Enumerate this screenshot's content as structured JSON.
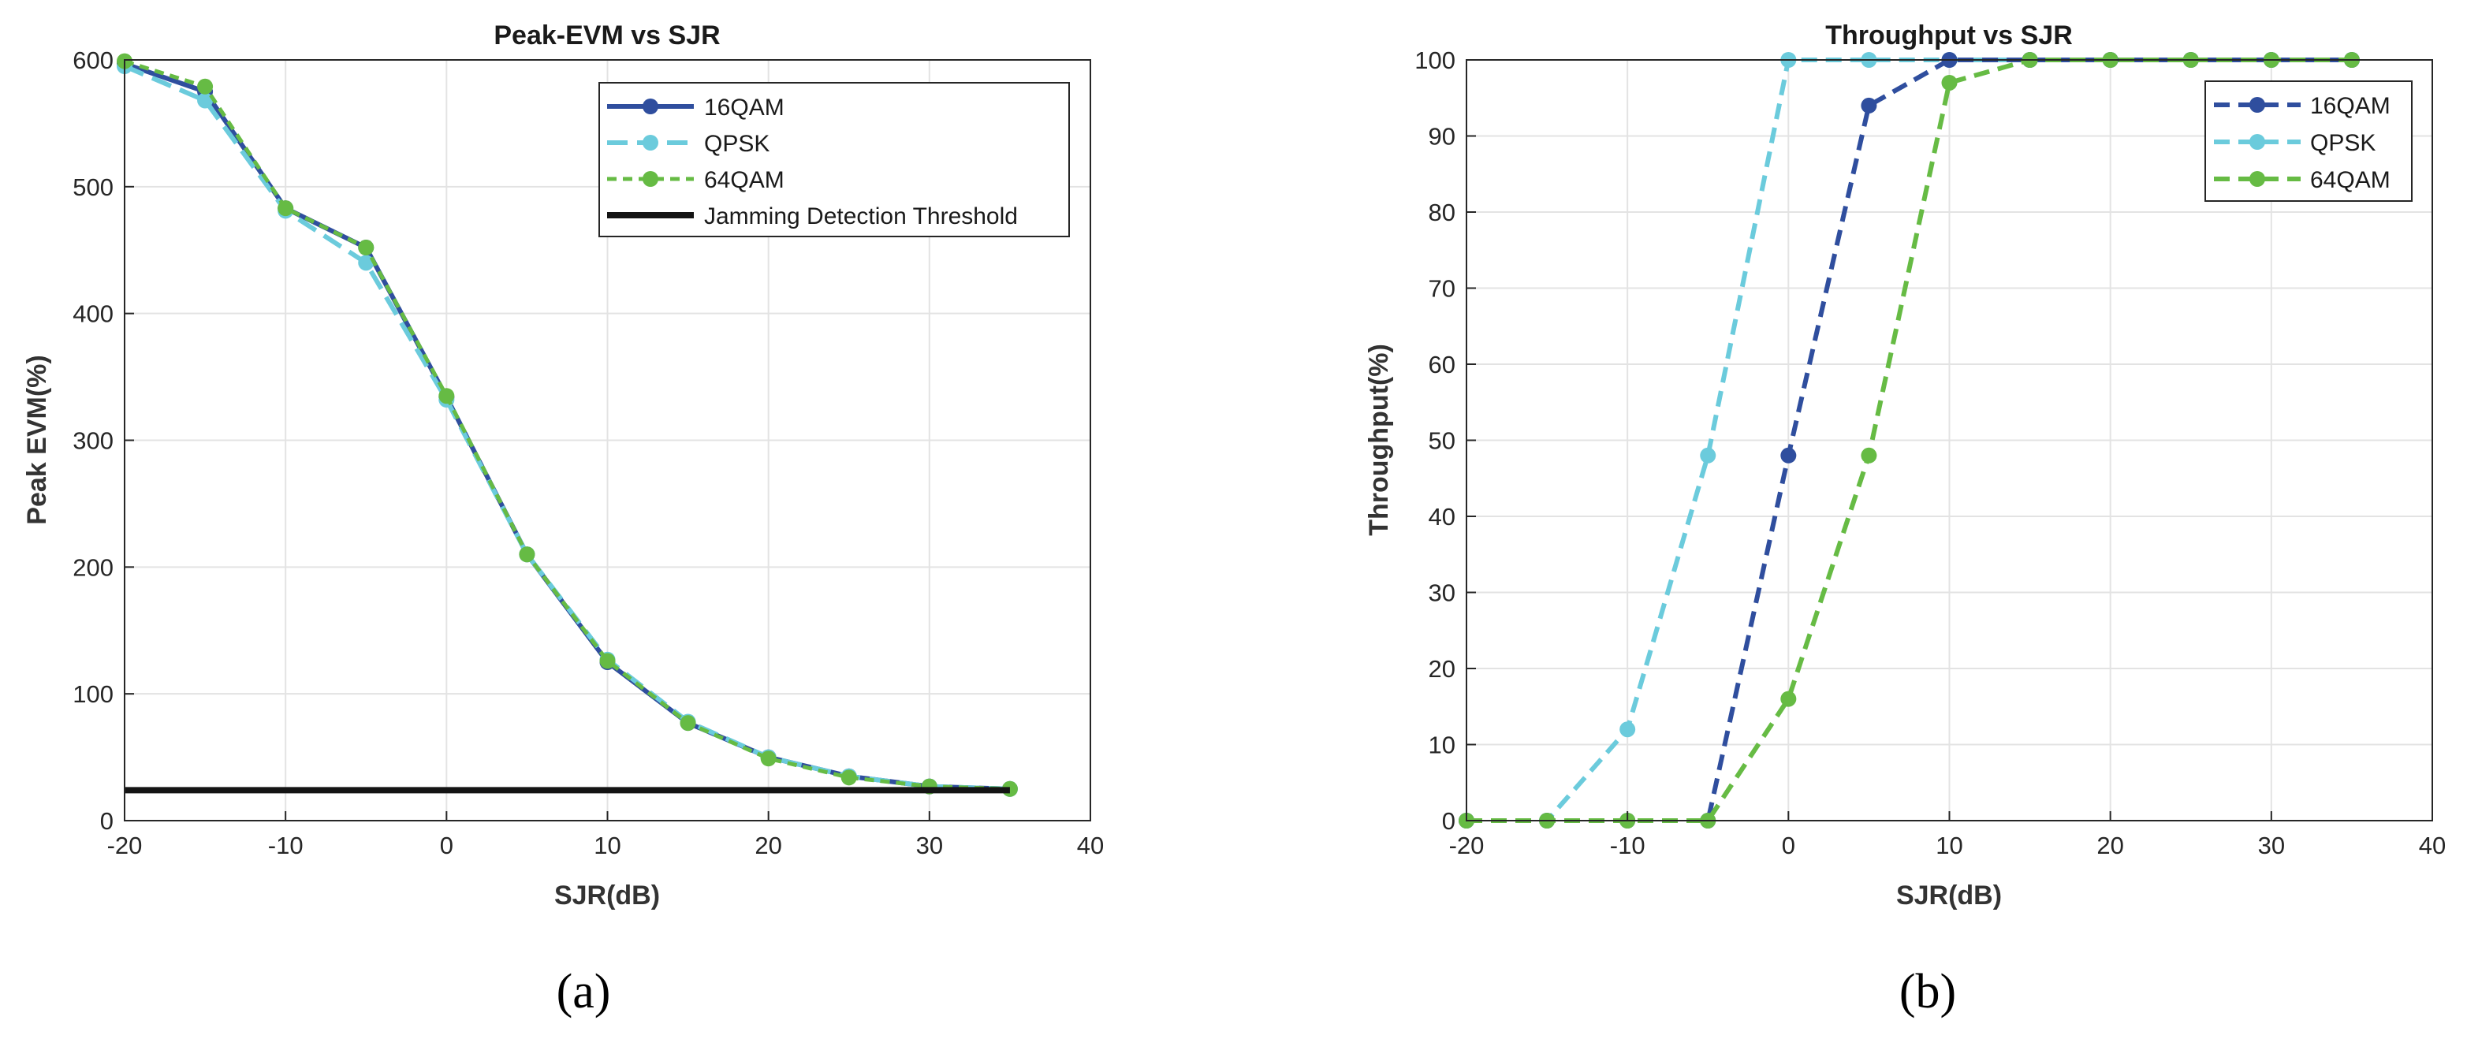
{
  "colors": {
    "s16": "#2f4e9e",
    "qpsk": "#6bcbdc",
    "s64": "#66bb44",
    "threshold": "#141414"
  },
  "chart_data": [
    {
      "type": "line",
      "title": "Peak-EVM vs SJR",
      "xlabel": "SJR(dB)",
      "ylabel": "Peak EVM(%)",
      "xlim": [
        -20,
        40
      ],
      "ylim": [
        0,
        600
      ],
      "xticks": [
        "-20",
        "-10",
        "0",
        "10",
        "20",
        "30",
        "40"
      ],
      "yticks": [
        "0",
        "100",
        "200",
        "300",
        "400",
        "500",
        "600"
      ],
      "grid": true,
      "legend_position": "top-right",
      "caption": "(a)",
      "series": [
        {
          "name": "16QAM",
          "x": [
            -20,
            -15,
            -10,
            -5,
            0,
            5,
            10,
            15,
            20,
            25,
            30,
            35
          ],
          "y": [
            597,
            575,
            483,
            452,
            334,
            210,
            125,
            77,
            50,
            35,
            27,
            25
          ]
        },
        {
          "name": "QPSK",
          "x": [
            -20,
            -15,
            -10,
            -5,
            0,
            5,
            10,
            15,
            20,
            25,
            30,
            35
          ],
          "y": [
            595,
            568,
            481,
            440,
            332,
            210,
            127,
            78,
            50,
            35,
            27,
            25
          ]
        },
        {
          "name": "64QAM",
          "x": [
            -20,
            -15,
            -10,
            -5,
            0,
            5,
            10,
            15,
            20,
            25,
            30,
            35
          ],
          "y": [
            599,
            579,
            483,
            452,
            335,
            210,
            126,
            77,
            49,
            34,
            27,
            25
          ]
        },
        {
          "name": "Jamming Detection Threshold",
          "x": [
            -20,
            35
          ],
          "y": [
            24,
            24
          ]
        }
      ]
    },
    {
      "type": "line",
      "title": "Throughput vs SJR",
      "xlabel": "SJR(dB)",
      "ylabel": "Throughput(%)",
      "xlim": [
        -20,
        40
      ],
      "ylim": [
        0,
        100
      ],
      "xticks": [
        "-20",
        "-10",
        "0",
        "10",
        "20",
        "30",
        "40"
      ],
      "yticks": [
        "0",
        "10",
        "20",
        "30",
        "40",
        "50",
        "60",
        "70",
        "80",
        "90",
        "100"
      ],
      "grid": true,
      "legend_position": "top-right",
      "caption": "(b)",
      "series": [
        {
          "name": "16QAM",
          "x": [
            -20,
            -15,
            -10,
            -5,
            0,
            5,
            10,
            15,
            20,
            25,
            30,
            35
          ],
          "y": [
            0,
            0,
            0,
            0,
            48,
            94,
            100,
            100,
            100,
            100,
            100,
            100
          ]
        },
        {
          "name": "QPSK",
          "x": [
            -20,
            -15,
            -10,
            -5,
            0,
            5,
            10,
            15,
            20,
            25,
            30,
            35
          ],
          "y": [
            0,
            0,
            12,
            48,
            100,
            100,
            100,
            100,
            100,
            100,
            100,
            100
          ]
        },
        {
          "name": "64QAM",
          "x": [
            -20,
            -15,
            -10,
            -5,
            0,
            5,
            10,
            15,
            20,
            25,
            30,
            35
          ],
          "y": [
            0,
            0,
            0,
            0,
            16,
            48,
            97,
            100,
            100,
            100,
            100,
            100
          ]
        }
      ]
    }
  ]
}
